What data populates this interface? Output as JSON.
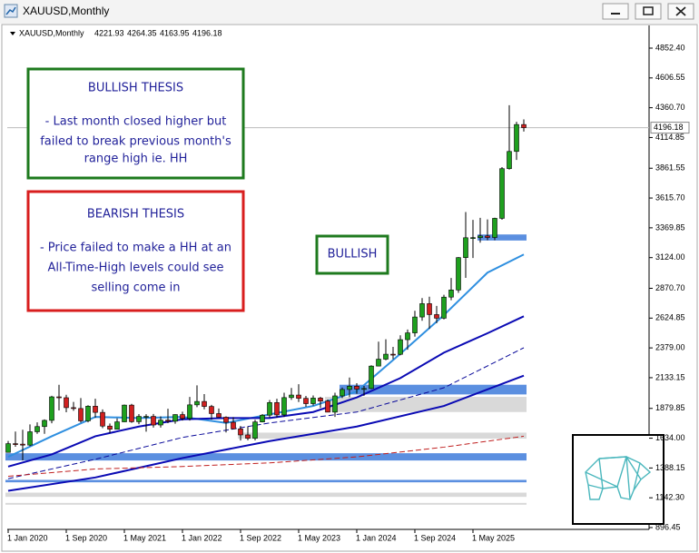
{
  "window": {
    "title": "XAUUSD,Monthly"
  },
  "chart_data": {
    "type": "candlestick",
    "categories": [
      "1 Jan 2020",
      null,
      null,
      null,
      null,
      null,
      null,
      null,
      "1 Sep 2020",
      null,
      null,
      null,
      null,
      null,
      null,
      null,
      "1 May 2021",
      null,
      null,
      null,
      null,
      null,
      null,
      null,
      "1 Jan 2022",
      null,
      null,
      null,
      null,
      null,
      null,
      null,
      "1 Sep 2022",
      null,
      null,
      null,
      null,
      null,
      null,
      null,
      "1 May 2023",
      null,
      null,
      null,
      null,
      null,
      null,
      null,
      "1 Jan 2024",
      null,
      null,
      null,
      null,
      null,
      null,
      null,
      "1 Sep 2024",
      null,
      null,
      null,
      null,
      null,
      null,
      null,
      "1 May 2025",
      null,
      null,
      null,
      null,
      null,
      null,
      null
    ],
    "open": [
      1517,
      1589,
      1585,
      1577,
      1687,
      1730,
      1781,
      1975,
      1968,
      1886,
      1879,
      1777,
      1898,
      1847,
      1734,
      1708,
      1769,
      1907,
      1770,
      1814,
      1814,
      1743,
      1783,
      1774,
      1829,
      1797,
      1909,
      1937,
      1896,
      1837,
      1807,
      1765,
      1711,
      1661,
      1633,
      1768,
      1824,
      1928,
      1826,
      1969,
      1990,
      1963,
      1919,
      1965,
      1940,
      1849,
      1983,
      2036,
      2063,
      2039,
      2044,
      2229,
      2286,
      2327,
      2326,
      2447,
      2503,
      2634,
      2744,
      2654,
      2624,
      2798,
      2857,
      3124,
      3288,
      3289,
      3303,
      3290,
      3448,
      3858,
      4000,
      4221.93
    ],
    "high": [
      1611,
      1689,
      1704,
      1748,
      1765,
      1789,
      1984,
      2075,
      1992,
      1933,
      1965,
      1906,
      1959,
      1871,
      1755,
      1798,
      1912,
      1917,
      1833,
      1832,
      1834,
      1814,
      1877,
      1831,
      1853,
      1974,
      2070,
      1998,
      1909,
      1879,
      1814,
      1808,
      1735,
      1730,
      1786,
      1833,
      1949,
      1959,
      2009,
      2048,
      2079,
      1983,
      1987,
      1975,
      1953,
      2009,
      2052,
      2135,
      2088,
      2065,
      2236,
      2431,
      2450,
      2387,
      2483,
      2531,
      2685,
      2790,
      2801,
      2726,
      2817,
      2956,
      3128,
      3500,
      3435,
      3452,
      3439,
      3453,
      3871,
      4381,
      4245,
      4264.35
    ],
    "low": [
      1517,
      1563,
      1451,
      1568,
      1670,
      1670,
      1757,
      1863,
      1848,
      1860,
      1764,
      1765,
      1802,
      1717,
      1677,
      1706,
      1767,
      1761,
      1750,
      1688,
      1722,
      1722,
      1758,
      1753,
      1780,
      1780,
      1890,
      1872,
      1787,
      1805,
      1681,
      1709,
      1615,
      1617,
      1616,
      1765,
      1804,
      1804,
      1810,
      1950,
      1932,
      1893,
      1903,
      1884,
      1848,
      1810,
      1965,
      1973,
      2001,
      1984,
      2039,
      2228,
      2277,
      2286,
      2318,
      2364,
      2472,
      2603,
      2536,
      2583,
      2614,
      2772,
      2833,
      2957,
      3121,
      3247,
      3268,
      3268,
      3436,
      3850,
      3930,
      4163.95
    ],
    "close": [
      1589,
      1585,
      1577,
      1687,
      1730,
      1781,
      1975,
      1968,
      1886,
      1879,
      1777,
      1898,
      1847,
      1734,
      1708,
      1769,
      1907,
      1770,
      1814,
      1814,
      1743,
      1783,
      1774,
      1829,
      1797,
      1909,
      1937,
      1896,
      1837,
      1807,
      1765,
      1711,
      1661,
      1633,
      1768,
      1824,
      1928,
      1826,
      1969,
      1990,
      1963,
      1919,
      1965,
      1940,
      1849,
      1983,
      2036,
      2063,
      2039,
      2044,
      2229,
      2286,
      2327,
      2326,
      2447,
      2503,
      2634,
      2744,
      2654,
      2624,
      2798,
      2857,
      3124,
      3288,
      3289,
      3303,
      3290,
      3448,
      3858,
      4000,
      4222,
      4196.18
    ],
    "up_color": "#1ea01e",
    "down_color": "#d02020",
    "ylim": [
      881.5,
      4964.8
    ],
    "yticks": [
      896.45,
      {
        "value": 1142.3,
        "label": "1142.30"
      },
      1388.15,
      {
        "value": 1634,
        "label": "1634.00"
      },
      1879.85,
      2133.15,
      {
        "value": 2379,
        "label": "2379.00"
      },
      2624.85,
      {
        "value": 2870.7,
        "label": "2870.70"
      },
      {
        "value": 3124,
        "label": "3124.00"
      },
      3369.85,
      {
        "value": 3615.7,
        "label": "3615.70"
      },
      3861.55,
      4114.85,
      {
        "value": 4360.7,
        "label": "4360.70"
      },
      4606.55,
      {
        "value": 4852.4,
        "label": "4852.40"
      }
    ],
    "grid": false,
    "zones": [
      {
        "from": 3265,
        "to": 3315,
        "color": "#5b8fe0",
        "start": 65
      },
      {
        "from": 1995,
        "to": 2075,
        "color": "#5b8fe0",
        "start": 46
      },
      {
        "from": 1850,
        "to": 1975,
        "color": "#d9d9d9",
        "start": 44
      },
      {
        "from": 1630,
        "to": 1680,
        "color": "#d9d9d9",
        "start": 32
      },
      {
        "from": 1450,
        "to": 1510,
        "color": "#5b8fe0",
        "start": 0
      },
      {
        "from": 1270,
        "to": 1290,
        "color": "#5b8fe0",
        "start": 0
      },
      {
        "from": 1150,
        "to": 1185,
        "color": "#d9d9d9",
        "start": 0
      },
      {
        "from": 1085,
        "to": 1100,
        "color": "#d9d9d9",
        "start": 0
      }
    ],
    "indicators": [
      {
        "color": "#2f8fe0",
        "dash": false,
        "x": [
          0,
          6,
          12,
          18,
          24,
          30,
          36,
          42,
          48,
          54,
          60,
          66,
          71
        ],
        "values": [
          1480,
          1650,
          1810,
          1800,
          1810,
          1760,
          1830,
          1900,
          2020,
          2330,
          2650,
          3000,
          3150
        ]
      },
      {
        "color": "#0a0ab4",
        "dash": false,
        "x": [
          0,
          6,
          12,
          18,
          24,
          30,
          36,
          42,
          48,
          54,
          60,
          66,
          71
        ],
        "values": [
          1400,
          1500,
          1650,
          1730,
          1790,
          1800,
          1800,
          1850,
          1970,
          2130,
          2340,
          2500,
          2640
        ]
      },
      {
        "color": "#0a0a9a",
        "dash": true,
        "x": [
          0,
          12,
          24,
          36,
          48,
          60,
          71
        ],
        "values": [
          1300,
          1460,
          1640,
          1760,
          1850,
          2050,
          2380
        ]
      },
      {
        "color": "#0a0ab4",
        "dash": false,
        "x": [
          0,
          12,
          24,
          36,
          48,
          60,
          71
        ],
        "values": [
          1200,
          1310,
          1470,
          1610,
          1730,
          1900,
          2150
        ]
      },
      {
        "color": "#c02020",
        "dash": true,
        "x": [
          0,
          12,
          24,
          36,
          48,
          60,
          71
        ],
        "values": [
          1320,
          1380,
          1400,
          1430,
          1480,
          1560,
          1650
        ]
      }
    ],
    "annotations": [
      {
        "title": "BULLISH THESIS",
        "lines": [
          "- Last month closed higher but",
          "failed to break previous month's",
          "range high ie. HH"
        ],
        "color": "#1e7a1e"
      },
      {
        "title": "BEARISH THESIS",
        "lines": [
          "- Price failed to make a HH at an",
          "All-Time-High levels could see",
          "selling come in"
        ],
        "color": "#d81e1e"
      }
    ],
    "label": {
      "text": "BULLISH",
      "color": "#1e7a1e"
    }
  }
}
